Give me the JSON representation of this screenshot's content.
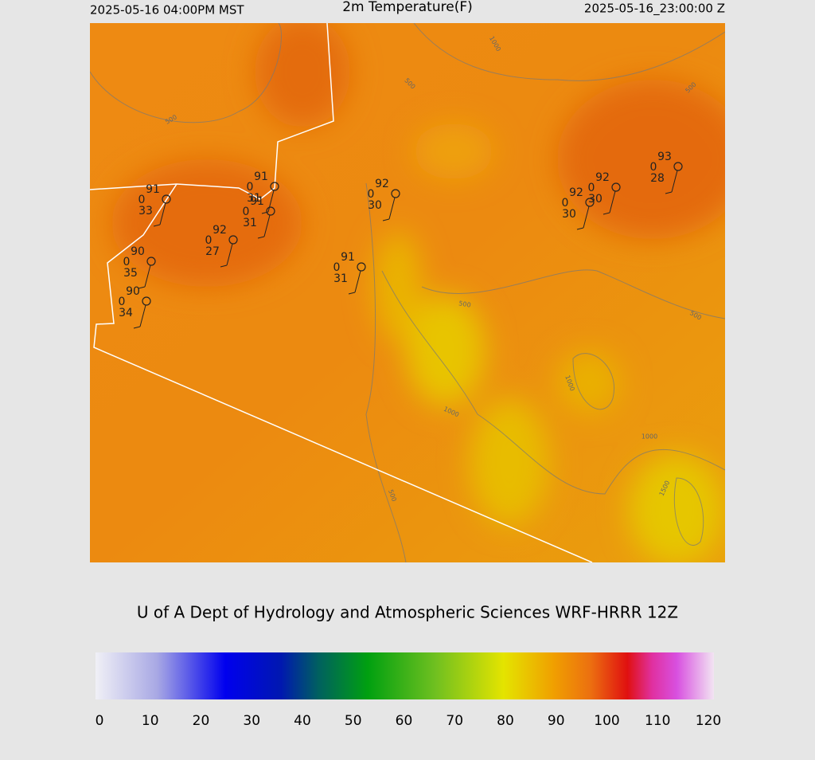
{
  "header": {
    "left": "2025-05-16 04:00PM MST",
    "title": "2m Temperature(F)",
    "right": "2025-05-16_23:00:00 Z"
  },
  "stations": [
    {
      "temperature": 91,
      "dewpoint_flag": 0,
      "value": 33
    },
    {
      "temperature": 91,
      "dewpoint_flag": 0,
      "value": 31
    },
    {
      "temperature": 91,
      "dewpoint_flag": 0,
      "value": 31
    },
    {
      "temperature": 92,
      "dewpoint_flag": 0,
      "value": 27
    },
    {
      "temperature": 90,
      "dewpoint_flag": 0,
      "value": 35
    },
    {
      "temperature": 90,
      "dewpoint_flag": 0,
      "value": 34
    },
    {
      "temperature": 91,
      "dewpoint_flag": 0,
      "value": 31
    },
    {
      "temperature": 92,
      "dewpoint_flag": 0,
      "value": 30
    },
    {
      "temperature": 92,
      "dewpoint_flag": 0,
      "value": 30
    },
    {
      "temperature": 92,
      "dewpoint_flag": 0,
      "value": 30
    },
    {
      "temperature": 93,
      "dewpoint_flag": 0,
      "value": 28
    }
  ],
  "contour_labels": [
    "1000",
    "500",
    "500",
    "500",
    "500",
    "500",
    "1000",
    "1000",
    "1000",
    "1500",
    "500"
  ],
  "credit": "U of A Dept of Hydrology and Atmospheric Sciences WRF-HRRR 12Z",
  "colorbar": {
    "ticks": [
      0,
      10,
      20,
      30,
      40,
      50,
      60,
      70,
      80,
      90,
      100,
      110,
      120
    ]
  }
}
